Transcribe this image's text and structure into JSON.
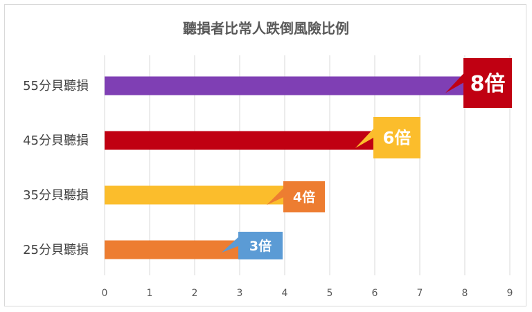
{
  "chart_data": {
    "type": "bar",
    "orientation": "horizontal",
    "title": "聽損者比常人跌倒風險比例",
    "categories": [
      "55分貝聽損",
      "45分貝聽損",
      "35分貝聽損",
      "25分貝聽損"
    ],
    "values": [
      8,
      6,
      4,
      3
    ],
    "data_labels": [
      "8倍",
      "6倍",
      "4倍",
      "3倍"
    ],
    "bar_colors": [
      "#7f3fb4",
      "#c00012",
      "#fbbd2c",
      "#ed7d31"
    ],
    "label_colors": [
      "#c00012",
      "#fbbd2c",
      "#ed7d31",
      "#5b9bd5"
    ],
    "xlim": [
      0,
      9
    ],
    "xticks": [
      0,
      1,
      2,
      3,
      4,
      5,
      6,
      7,
      8,
      9
    ],
    "grid": true,
    "legend": "none"
  }
}
